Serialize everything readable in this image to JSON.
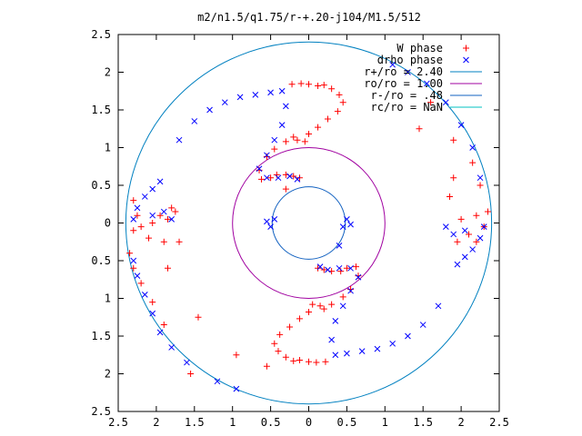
{
  "chart_data": {
    "type": "scatter",
    "title": "m2/n1.5/q1.75/r-+.20-j104/M1.5/512",
    "xlim": [
      -2.5,
      2.5
    ],
    "ylim": [
      -2.5,
      2.5
    ],
    "xticks": [
      -2.5,
      -2,
      -1.5,
      -1,
      -0.5,
      0,
      0.5,
      1,
      1.5,
      2,
      2.5
    ],
    "yticks": [
      -2.5,
      -2,
      -1.5,
      -1,
      -0.5,
      0,
      0.5,
      1,
      1.5,
      2,
      2.5
    ],
    "xtick_labels": [
      "2.5",
      "2",
      "1.5",
      "1",
      "0.5",
      "0",
      "0.5",
      "1",
      "1.5",
      "2",
      "2.5"
    ],
    "ytick_labels": [
      "2.5",
      "2",
      "1.5",
      "1",
      "0.5",
      "0",
      "0.5",
      "1",
      "1.5",
      "2",
      "2.5"
    ],
    "grid": false,
    "legend_position": "top-right",
    "point_series": [
      {
        "name": "W phase",
        "marker": "plus",
        "color": "#ff0000",
        "spiral_points": [
          [
            -0.22,
            1.84
          ],
          [
            -0.1,
            1.85
          ],
          [
            0.0,
            1.84
          ],
          [
            0.12,
            1.82
          ],
          [
            0.2,
            1.83
          ],
          [
            0.3,
            1.78
          ],
          [
            0.4,
            1.7
          ],
          [
            0.45,
            1.6
          ],
          [
            0.38,
            1.48
          ],
          [
            0.25,
            1.38
          ],
          [
            0.12,
            1.27
          ],
          [
            0.0,
            1.18
          ],
          [
            -0.05,
            1.08
          ],
          [
            -0.15,
            1.1
          ],
          [
            -0.2,
            1.14
          ],
          [
            -0.3,
            1.08
          ],
          [
            -0.45,
            0.98
          ],
          [
            -0.55,
            0.88
          ],
          [
            -0.65,
            0.7
          ],
          [
            -0.62,
            0.58
          ],
          [
            -0.5,
            0.6
          ],
          [
            -0.42,
            0.64
          ],
          [
            -0.3,
            0.64
          ],
          [
            -0.2,
            0.62
          ],
          [
            -0.12,
            0.6
          ],
          [
            0.22,
            -1.84
          ],
          [
            0.1,
            -1.85
          ],
          [
            0.0,
            -1.84
          ],
          [
            -0.12,
            -1.82
          ],
          [
            -0.2,
            -1.83
          ],
          [
            -0.3,
            -1.78
          ],
          [
            -0.4,
            -1.7
          ],
          [
            -0.45,
            -1.6
          ],
          [
            -0.38,
            -1.48
          ],
          [
            -0.25,
            -1.38
          ],
          [
            -0.12,
            -1.27
          ],
          [
            0.0,
            -1.18
          ],
          [
            0.05,
            -1.08
          ],
          [
            0.15,
            -1.1
          ],
          [
            0.2,
            -1.14
          ],
          [
            0.3,
            -1.08
          ],
          [
            0.45,
            -0.98
          ],
          [
            0.55,
            -0.88
          ],
          [
            0.65,
            -0.7
          ],
          [
            0.62,
            -0.58
          ],
          [
            0.5,
            -0.6
          ],
          [
            0.42,
            -0.64
          ],
          [
            0.3,
            -0.64
          ],
          [
            0.2,
            -0.62
          ],
          [
            0.12,
            -0.6
          ]
        ],
        "scattered_points": [
          [
            -2.3,
            0.3
          ],
          [
            -2.25,
            0.1
          ],
          [
            -2.3,
            -0.1
          ],
          [
            -2.2,
            -0.05
          ],
          [
            -2.1,
            -0.2
          ],
          [
            -2.05,
            0.0
          ],
          [
            -1.95,
            0.1
          ],
          [
            -1.9,
            -0.25
          ],
          [
            -1.85,
            0.05
          ],
          [
            -1.8,
            0.2
          ],
          [
            -1.75,
            0.15
          ],
          [
            -1.7,
            -0.25
          ],
          [
            -2.35,
            -0.4
          ],
          [
            -2.3,
            -0.6
          ],
          [
            -2.2,
            -0.8
          ],
          [
            -2.05,
            -1.05
          ],
          [
            -1.9,
            -1.35
          ],
          [
            -1.85,
            -0.6
          ],
          [
            -1.45,
            -1.25
          ],
          [
            -1.55,
            -2.0
          ],
          [
            -0.95,
            -1.75
          ],
          [
            -0.55,
            -1.9
          ],
          [
            -0.3,
            0.45
          ],
          [
            1.45,
            1.25
          ],
          [
            1.9,
            0.6
          ],
          [
            1.85,
            0.35
          ],
          [
            2.0,
            0.05
          ],
          [
            2.1,
            -0.15
          ],
          [
            2.2,
            0.1
          ],
          [
            2.3,
            -0.05
          ],
          [
            2.35,
            0.15
          ],
          [
            2.2,
            -0.25
          ],
          [
            1.95,
            -0.25
          ],
          [
            1.9,
            1.1
          ],
          [
            2.15,
            0.8
          ],
          [
            2.25,
            0.5
          ],
          [
            1.6,
            1.6
          ]
        ]
      },
      {
        "name": "drho phase",
        "marker": "cross",
        "color": "#0000ff",
        "spiral_points": [
          [
            -1.7,
            1.1
          ],
          [
            -1.5,
            1.35
          ],
          [
            -1.3,
            1.5
          ],
          [
            -1.1,
            1.6
          ],
          [
            -0.9,
            1.67
          ],
          [
            -0.7,
            1.7
          ],
          [
            -0.5,
            1.73
          ],
          [
            -0.35,
            1.75
          ],
          [
            -0.3,
            1.55
          ],
          [
            -0.35,
            1.3
          ],
          [
            -0.45,
            1.1
          ],
          [
            -0.55,
            0.9
          ],
          [
            -0.65,
            0.72
          ],
          [
            -0.55,
            0.6
          ],
          [
            -0.4,
            0.6
          ],
          [
            -0.25,
            0.62
          ],
          [
            -0.15,
            0.58
          ],
          [
            -1.95,
            0.55
          ],
          [
            -2.05,
            0.45
          ],
          [
            -2.15,
            0.35
          ],
          [
            -2.25,
            0.2
          ],
          [
            -2.3,
            0.05
          ],
          [
            -2.05,
            0.1
          ],
          [
            -1.9,
            0.15
          ],
          [
            -1.8,
            0.05
          ],
          [
            -0.55,
            0.02
          ],
          [
            -0.5,
            -0.05
          ],
          [
            -0.45,
            0.05
          ],
          [
            1.7,
            -1.1
          ],
          [
            1.5,
            -1.35
          ],
          [
            1.3,
            -1.5
          ],
          [
            1.1,
            -1.6
          ],
          [
            0.9,
            -1.67
          ],
          [
            0.7,
            -1.7
          ],
          [
            0.5,
            -1.73
          ],
          [
            0.35,
            -1.75
          ],
          [
            0.3,
            -1.55
          ],
          [
            0.35,
            -1.3
          ],
          [
            0.45,
            -1.1
          ],
          [
            0.55,
            -0.9
          ],
          [
            0.65,
            -0.72
          ],
          [
            0.55,
            -0.6
          ],
          [
            0.4,
            -0.6
          ],
          [
            0.25,
            -0.62
          ],
          [
            0.15,
            -0.58
          ],
          [
            1.95,
            -0.55
          ],
          [
            2.05,
            -0.45
          ],
          [
            2.15,
            -0.35
          ],
          [
            2.25,
            -0.2
          ],
          [
            2.3,
            -0.05
          ],
          [
            2.05,
            -0.1
          ],
          [
            1.9,
            -0.15
          ],
          [
            1.8,
            -0.05
          ],
          [
            0.55,
            -0.02
          ],
          [
            0.5,
            0.05
          ],
          [
            0.45,
            -0.05
          ]
        ],
        "scattered_points": [
          [
            -2.3,
            -0.5
          ],
          [
            -2.25,
            -0.7
          ],
          [
            -2.15,
            -0.95
          ],
          [
            -2.05,
            -1.2
          ],
          [
            -1.95,
            -1.45
          ],
          [
            -1.8,
            -1.65
          ],
          [
            -1.6,
            -1.85
          ],
          [
            -1.2,
            -2.1
          ],
          [
            -0.95,
            -2.2
          ],
          [
            0.4,
            -0.3
          ],
          [
            1.1,
            2.1
          ],
          [
            1.3,
            2.0
          ],
          [
            1.55,
            1.85
          ],
          [
            1.8,
            1.6
          ],
          [
            2.0,
            1.3
          ],
          [
            2.15,
            1.0
          ],
          [
            2.25,
            0.6
          ]
        ]
      }
    ],
    "circle_series": [
      {
        "name": "r+/ro = 2.40",
        "radius": 2.4,
        "color": "#0080c0"
      },
      {
        "name": "ro/ro = 1.00",
        "radius": 1.0,
        "color": "#a000a0"
      },
      {
        "name": "r-/ro = .48",
        "radius": 0.48,
        "color": "#1060c0"
      },
      {
        "name": "rc/ro = NaN",
        "radius": null,
        "color": "#00c0c0"
      }
    ]
  }
}
